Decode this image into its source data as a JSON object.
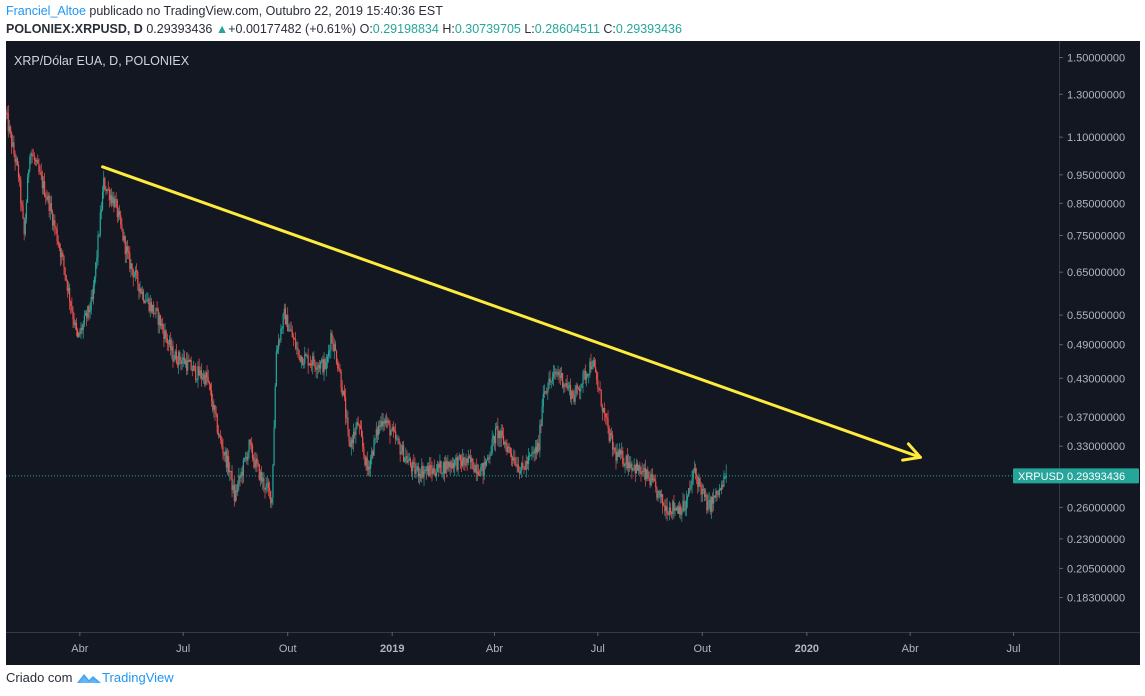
{
  "header": {
    "author": "Franciel_Altoe",
    "published_text": "publicado no TradingView.com, Outubro 22, 2019 15:40:36 EST",
    "symbol": "POLONIEX:XRPUSD, D",
    "last": "0.29393436",
    "change_arrow": "▲",
    "change": "+0.00177482 (+0.61%)",
    "open_label": "O:",
    "open": "0.29198834",
    "high_label": "H:",
    "high": "0.30739705",
    "low_label": "L:",
    "low": "0.28604511",
    "close_label": "C:",
    "close": "0.29393436"
  },
  "footer": {
    "created_with": "Criado com",
    "brand": "TradingView"
  },
  "colors": {
    "background": "#131722",
    "up": "#26a69a",
    "down": "#ef5350",
    "trendline": "#ffeb3b",
    "axis_text": "#b2b5be",
    "axis_line": "#363a45",
    "price_tag": "#26a69a"
  },
  "chart_data": {
    "type": "candlestick",
    "title": "XRP/Dólar EUA, D, POLONIEX",
    "scale": "log",
    "ylim": [
      0.16,
      1.6
    ],
    "y_ticks": [
      "1.50000000",
      "1.30000000",
      "1.10000000",
      "0.95000000",
      "0.85000000",
      "0.75000000",
      "0.65000000",
      "0.55000000",
      "0.49000000",
      "0.43000000",
      "0.37000000",
      "0.33000000",
      "0.26000000",
      "0.23000000",
      "0.20500000",
      "0.18300000"
    ],
    "x_ticks": [
      {
        "label": "Abr",
        "date": "2018-04-01",
        "bold": false
      },
      {
        "label": "Jul",
        "date": "2018-07-01",
        "bold": false
      },
      {
        "label": "Out",
        "date": "2018-10-01",
        "bold": false
      },
      {
        "label": "2019",
        "date": "2019-01-01",
        "bold": true
      },
      {
        "label": "Abr",
        "date": "2019-04-01",
        "bold": false
      },
      {
        "label": "Jul",
        "date": "2019-07-01",
        "bold": false
      },
      {
        "label": "Out",
        "date": "2019-10-01",
        "bold": false
      },
      {
        "label": "2020",
        "date": "2020-01-01",
        "bold": true
      },
      {
        "label": "Abr",
        "date": "2020-04-01",
        "bold": false
      },
      {
        "label": "Jul",
        "date": "2020-07-01",
        "bold": false
      }
    ],
    "xlim": [
      "2018-01-26",
      "2020-08-10"
    ],
    "path_dates": [
      "2018-01-26",
      "2018-01-30",
      "2018-02-06",
      "2018-02-11",
      "2018-02-16",
      "2018-02-22",
      "2018-03-05",
      "2018-03-17",
      "2018-03-30",
      "2018-04-12",
      "2018-04-22",
      "2018-05-02",
      "2018-05-14",
      "2018-05-26",
      "2018-06-10",
      "2018-06-22",
      "2018-07-02",
      "2018-07-12",
      "2018-07-22",
      "2018-08-02",
      "2018-08-11",
      "2018-08-15",
      "2018-08-28",
      "2018-09-08",
      "2018-09-17",
      "2018-09-21",
      "2018-09-28",
      "2018-10-11",
      "2018-10-22",
      "2018-11-04",
      "2018-11-08",
      "2018-11-15",
      "2018-11-20",
      "2018-11-24",
      "2018-12-02",
      "2018-12-10",
      "2018-12-19",
      "2018-12-24",
      "2019-01-07",
      "2019-01-20",
      "2019-02-06",
      "2019-02-24",
      "2019-03-10",
      "2019-03-22",
      "2019-04-03",
      "2019-04-12",
      "2019-04-25",
      "2019-05-10",
      "2019-05-14",
      "2019-05-27",
      "2019-06-10",
      "2019-06-26",
      "2019-07-10",
      "2019-07-16",
      "2019-07-29",
      "2019-08-06",
      "2019-08-16",
      "2019-08-29",
      "2019-09-09",
      "2019-09-16",
      "2019-09-24",
      "2019-10-06",
      "2019-10-18",
      "2019-10-22"
    ],
    "path_values": [
      1.2,
      1.1,
      0.95,
      0.75,
      1.05,
      0.98,
      0.85,
      0.68,
      0.5,
      0.58,
      0.92,
      0.85,
      0.68,
      0.6,
      0.54,
      0.47,
      0.46,
      0.44,
      0.43,
      0.34,
      0.3,
      0.27,
      0.33,
      0.29,
      0.27,
      0.48,
      0.55,
      0.47,
      0.46,
      0.45,
      0.51,
      0.45,
      0.39,
      0.33,
      0.36,
      0.3,
      0.35,
      0.37,
      0.33,
      0.3,
      0.3,
      0.31,
      0.31,
      0.3,
      0.35,
      0.33,
      0.3,
      0.33,
      0.41,
      0.44,
      0.4,
      0.46,
      0.35,
      0.32,
      0.31,
      0.3,
      0.29,
      0.26,
      0.26,
      0.26,
      0.3,
      0.26,
      0.28,
      0.29393436
    ],
    "last_price": 0.29393436,
    "last_price_label": "XRPUSD",
    "last_price_value": "0.29393436",
    "trendline": {
      "start": [
        "2018-04-21",
        0.98
      ],
      "end": [
        "2020-04-10",
        0.316
      ],
      "arrow": true
    }
  }
}
